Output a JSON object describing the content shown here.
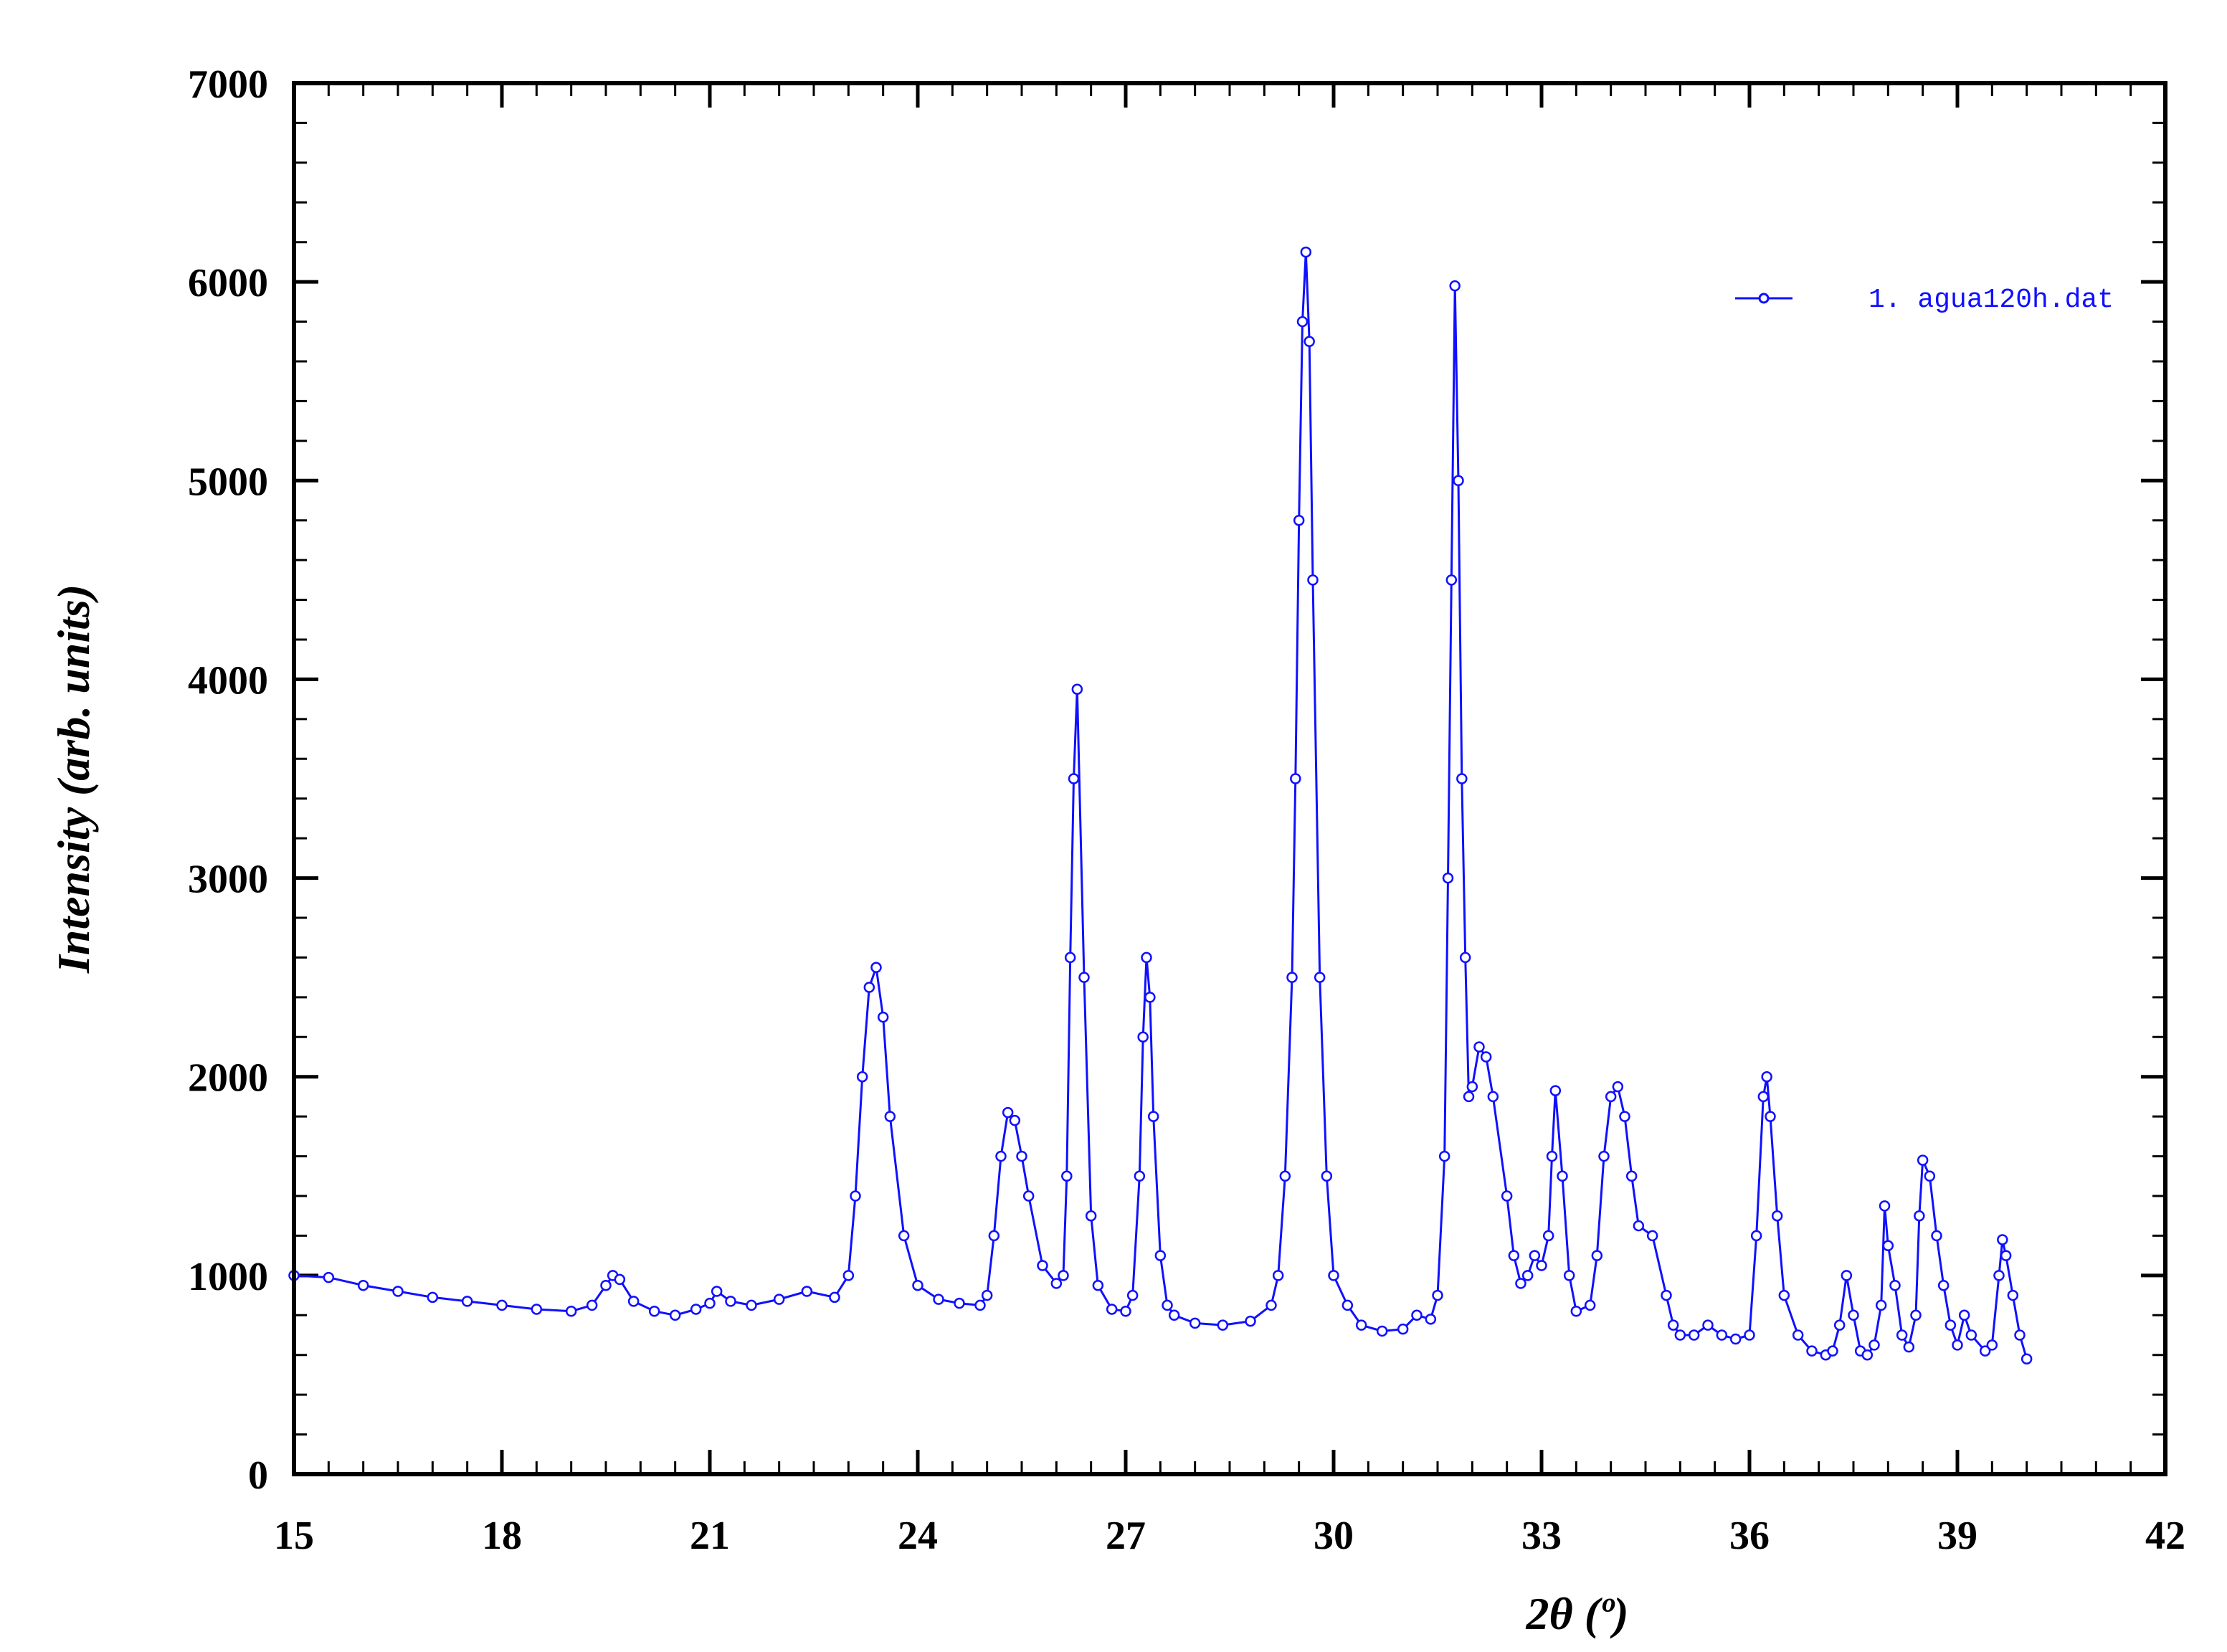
{
  "chart_data": {
    "type": "line",
    "title": "",
    "xlabel": "2θ (º)",
    "ylabel": "Intensity (arb. units)",
    "xlim": [
      15,
      42
    ],
    "ylim": [
      0,
      7000
    ],
    "xticks": [
      15,
      18,
      21,
      24,
      27,
      30,
      33,
      36,
      39,
      42
    ],
    "yticks": [
      0,
      1000,
      2000,
      3000,
      4000,
      5000,
      6000,
      7000
    ],
    "grid": false,
    "legend_position": "top-right",
    "series": [
      {
        "name": "1. agua120h.dat",
        "color": "#1010ff",
        "marker": "open-circle",
        "x": [
          15.0,
          15.5,
          16.0,
          16.5,
          17.0,
          17.5,
          18.0,
          18.5,
          19.0,
          19.3,
          19.5,
          19.6,
          19.7,
          19.9,
          20.2,
          20.5,
          20.8,
          21.0,
          21.1,
          21.3,
          21.6,
          22.0,
          22.4,
          22.8,
          23.0,
          23.1,
          23.2,
          23.3,
          23.4,
          23.5,
          23.6,
          23.8,
          24.0,
          24.3,
          24.6,
          24.9,
          25.0,
          25.1,
          25.2,
          25.3,
          25.4,
          25.5,
          25.6,
          25.8,
          26.0,
          26.1,
          26.15,
          26.2,
          26.25,
          26.3,
          26.4,
          26.5,
          26.6,
          26.8,
          27.0,
          27.1,
          27.2,
          27.25,
          27.3,
          27.35,
          27.4,
          27.5,
          27.6,
          27.7,
          28.0,
          28.4,
          28.8,
          29.1,
          29.2,
          29.3,
          29.4,
          29.45,
          29.5,
          29.55,
          29.6,
          29.65,
          29.7,
          29.8,
          29.9,
          30.0,
          30.2,
          30.4,
          30.7,
          31.0,
          31.2,
          31.4,
          31.5,
          31.6,
          31.65,
          31.7,
          31.75,
          31.8,
          31.85,
          31.9,
          31.95,
          32.0,
          32.1,
          32.2,
          32.3,
          32.5,
          32.6,
          32.7,
          32.8,
          32.9,
          33.0,
          33.1,
          33.15,
          33.2,
          33.3,
          33.4,
          33.5,
          33.7,
          33.8,
          33.9,
          34.0,
          34.1,
          34.2,
          34.3,
          34.4,
          34.6,
          34.8,
          34.9,
          35.0,
          35.2,
          35.4,
          35.6,
          35.8,
          36.0,
          36.1,
          36.2,
          36.25,
          36.3,
          36.4,
          36.5,
          36.7,
          36.9,
          37.1,
          37.2,
          37.3,
          37.4,
          37.5,
          37.6,
          37.7,
          37.8,
          37.9,
          37.95,
          38.0,
          38.1,
          38.2,
          38.3,
          38.4,
          38.45,
          38.5,
          38.6,
          38.7,
          38.8,
          38.9,
          39.0,
          39.1,
          39.2,
          39.4,
          39.5,
          39.6,
          39.65,
          39.7,
          39.8,
          39.9,
          40.0
        ],
        "y": [
          1000,
          990,
          950,
          920,
          890,
          870,
          850,
          830,
          820,
          850,
          950,
          1000,
          980,
          870,
          820,
          800,
          830,
          860,
          920,
          870,
          850,
          880,
          920,
          890,
          1000,
          1400,
          2000,
          2450,
          2550,
          2300,
          1800,
          1200,
          950,
          880,
          860,
          850,
          900,
          1200,
          1600,
          1820,
          1780,
          1600,
          1400,
          1050,
          960,
          1000,
          1500,
          2600,
          3500,
          3950,
          2500,
          1300,
          950,
          830,
          820,
          900,
          1500,
          2200,
          2600,
          2400,
          1800,
          1100,
          850,
          800,
          760,
          750,
          770,
          850,
          1000,
          1500,
          2500,
          3500,
          4800,
          5800,
          6150,
          5700,
          4500,
          2500,
          1500,
          1000,
          850,
          750,
          720,
          730,
          800,
          780,
          900,
          1600,
          3000,
          4500,
          5980,
          5000,
          3500,
          2600,
          1900,
          1950,
          2150,
          2100,
          1900,
          1400,
          1100,
          960,
          1000,
          1100,
          1050,
          1200,
          1600,
          1930,
          1500,
          1000,
          820,
          850,
          1100,
          1600,
          1900,
          1950,
          1800,
          1500,
          1250,
          1200,
          900,
          750,
          700,
          700,
          750,
          700,
          680,
          700,
          1200,
          1900,
          2000,
          1800,
          1300,
          900,
          700,
          620,
          600,
          620,
          750,
          1000,
          800,
          620,
          600,
          650,
          850,
          1350,
          1150,
          950,
          700,
          640,
          800,
          1300,
          1580,
          1500,
          1200,
          950,
          750,
          650,
          800,
          700,
          620,
          650,
          1000,
          1180,
          1100,
          900,
          700,
          580
        ]
      }
    ]
  }
}
